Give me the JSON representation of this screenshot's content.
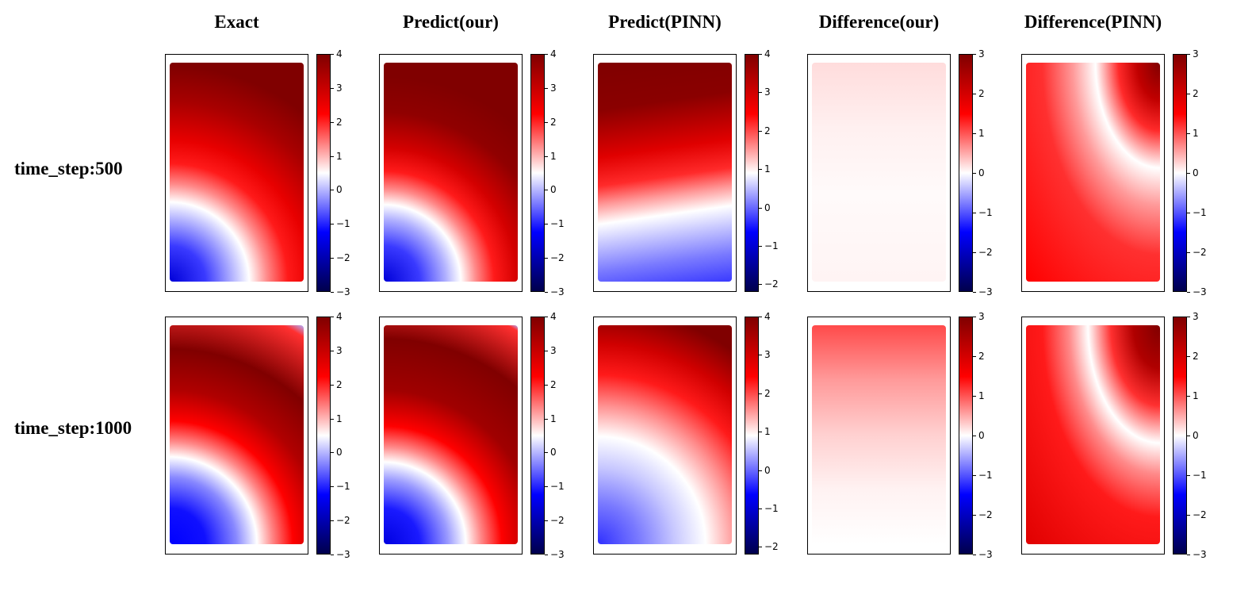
{
  "chart_data": {
    "type": "heatmap",
    "colormap": "seismic",
    "column_titles": [
      "Exact",
      "Predict(our)",
      "Predict(PINN)",
      "Difference(our)",
      "Difference(PINN)"
    ],
    "row_labels": [
      "time_step:500",
      "time_step:1000"
    ],
    "colorbars": [
      [
        {
          "vmin": -3,
          "vmax": 4,
          "ticks": [
            "4",
            "3",
            "2",
            "1",
            "0",
            "−1",
            "−2",
            "−3"
          ],
          "tick_values": [
            4,
            3,
            2,
            1,
            0,
            -1,
            -2,
            -3
          ]
        },
        {
          "vmin": -3,
          "vmax": 4,
          "ticks": [
            "4",
            "3",
            "2",
            "1",
            "0",
            "−1",
            "−2",
            "−3"
          ],
          "tick_values": [
            4,
            3,
            2,
            1,
            0,
            -1,
            -2,
            -3
          ]
        },
        {
          "vmin": -2.2,
          "vmax": 4,
          "ticks": [
            "4",
            "3",
            "2",
            "1",
            "0",
            "−1",
            "−2"
          ],
          "tick_values": [
            4,
            3,
            2,
            1,
            0,
            -1,
            -2
          ]
        },
        {
          "vmin": -3,
          "vmax": 3,
          "ticks": [
            "3",
            "2",
            "1",
            "0",
            "−1",
            "−2",
            "−3"
          ],
          "tick_values": [
            3,
            2,
            1,
            0,
            -1,
            -2,
            -3
          ]
        },
        {
          "vmin": -3,
          "vmax": 3,
          "ticks": [
            "3",
            "2",
            "1",
            "0",
            "−1",
            "−2",
            "−3"
          ],
          "tick_values": [
            3,
            2,
            1,
            0,
            -1,
            -2,
            -3
          ]
        }
      ],
      [
        {
          "vmin": -3,
          "vmax": 4,
          "ticks": [
            "4",
            "3",
            "2",
            "1",
            "0",
            "−1",
            "−2",
            "−3"
          ],
          "tick_values": [
            4,
            3,
            2,
            1,
            0,
            -1,
            -2,
            -3
          ]
        },
        {
          "vmin": -3,
          "vmax": 4,
          "ticks": [
            "4",
            "3",
            "2",
            "1",
            "0",
            "−1",
            "−2",
            "−3"
          ],
          "tick_values": [
            4,
            3,
            2,
            1,
            0,
            -1,
            -2,
            -3
          ]
        },
        {
          "vmin": -2.2,
          "vmax": 4,
          "ticks": [
            "4",
            "3",
            "2",
            "1",
            "0",
            "−1",
            "−2"
          ],
          "tick_values": [
            4,
            3,
            2,
            1,
            0,
            -1,
            -2
          ]
        },
        {
          "vmin": -3,
          "vmax": 3,
          "ticks": [
            "3",
            "2",
            "1",
            "0",
            "−1",
            "−2",
            "−3"
          ],
          "tick_values": [
            3,
            2,
            1,
            0,
            -1,
            -2,
            -3
          ]
        },
        {
          "vmin": -3,
          "vmax": 3,
          "ticks": [
            "3",
            "2",
            "1",
            "0",
            "−1",
            "−2",
            "−3"
          ],
          "tick_values": [
            3,
            2,
            1,
            0,
            -1,
            -2,
            -3
          ]
        }
      ]
    ]
  },
  "colors": {
    "seismic_low": "#00004c",
    "seismic_blue": "#0000ff",
    "seismic_mid": "#ffffff",
    "seismic_red": "#ff0000",
    "seismic_high": "#800000",
    "axis": "#000000"
  }
}
